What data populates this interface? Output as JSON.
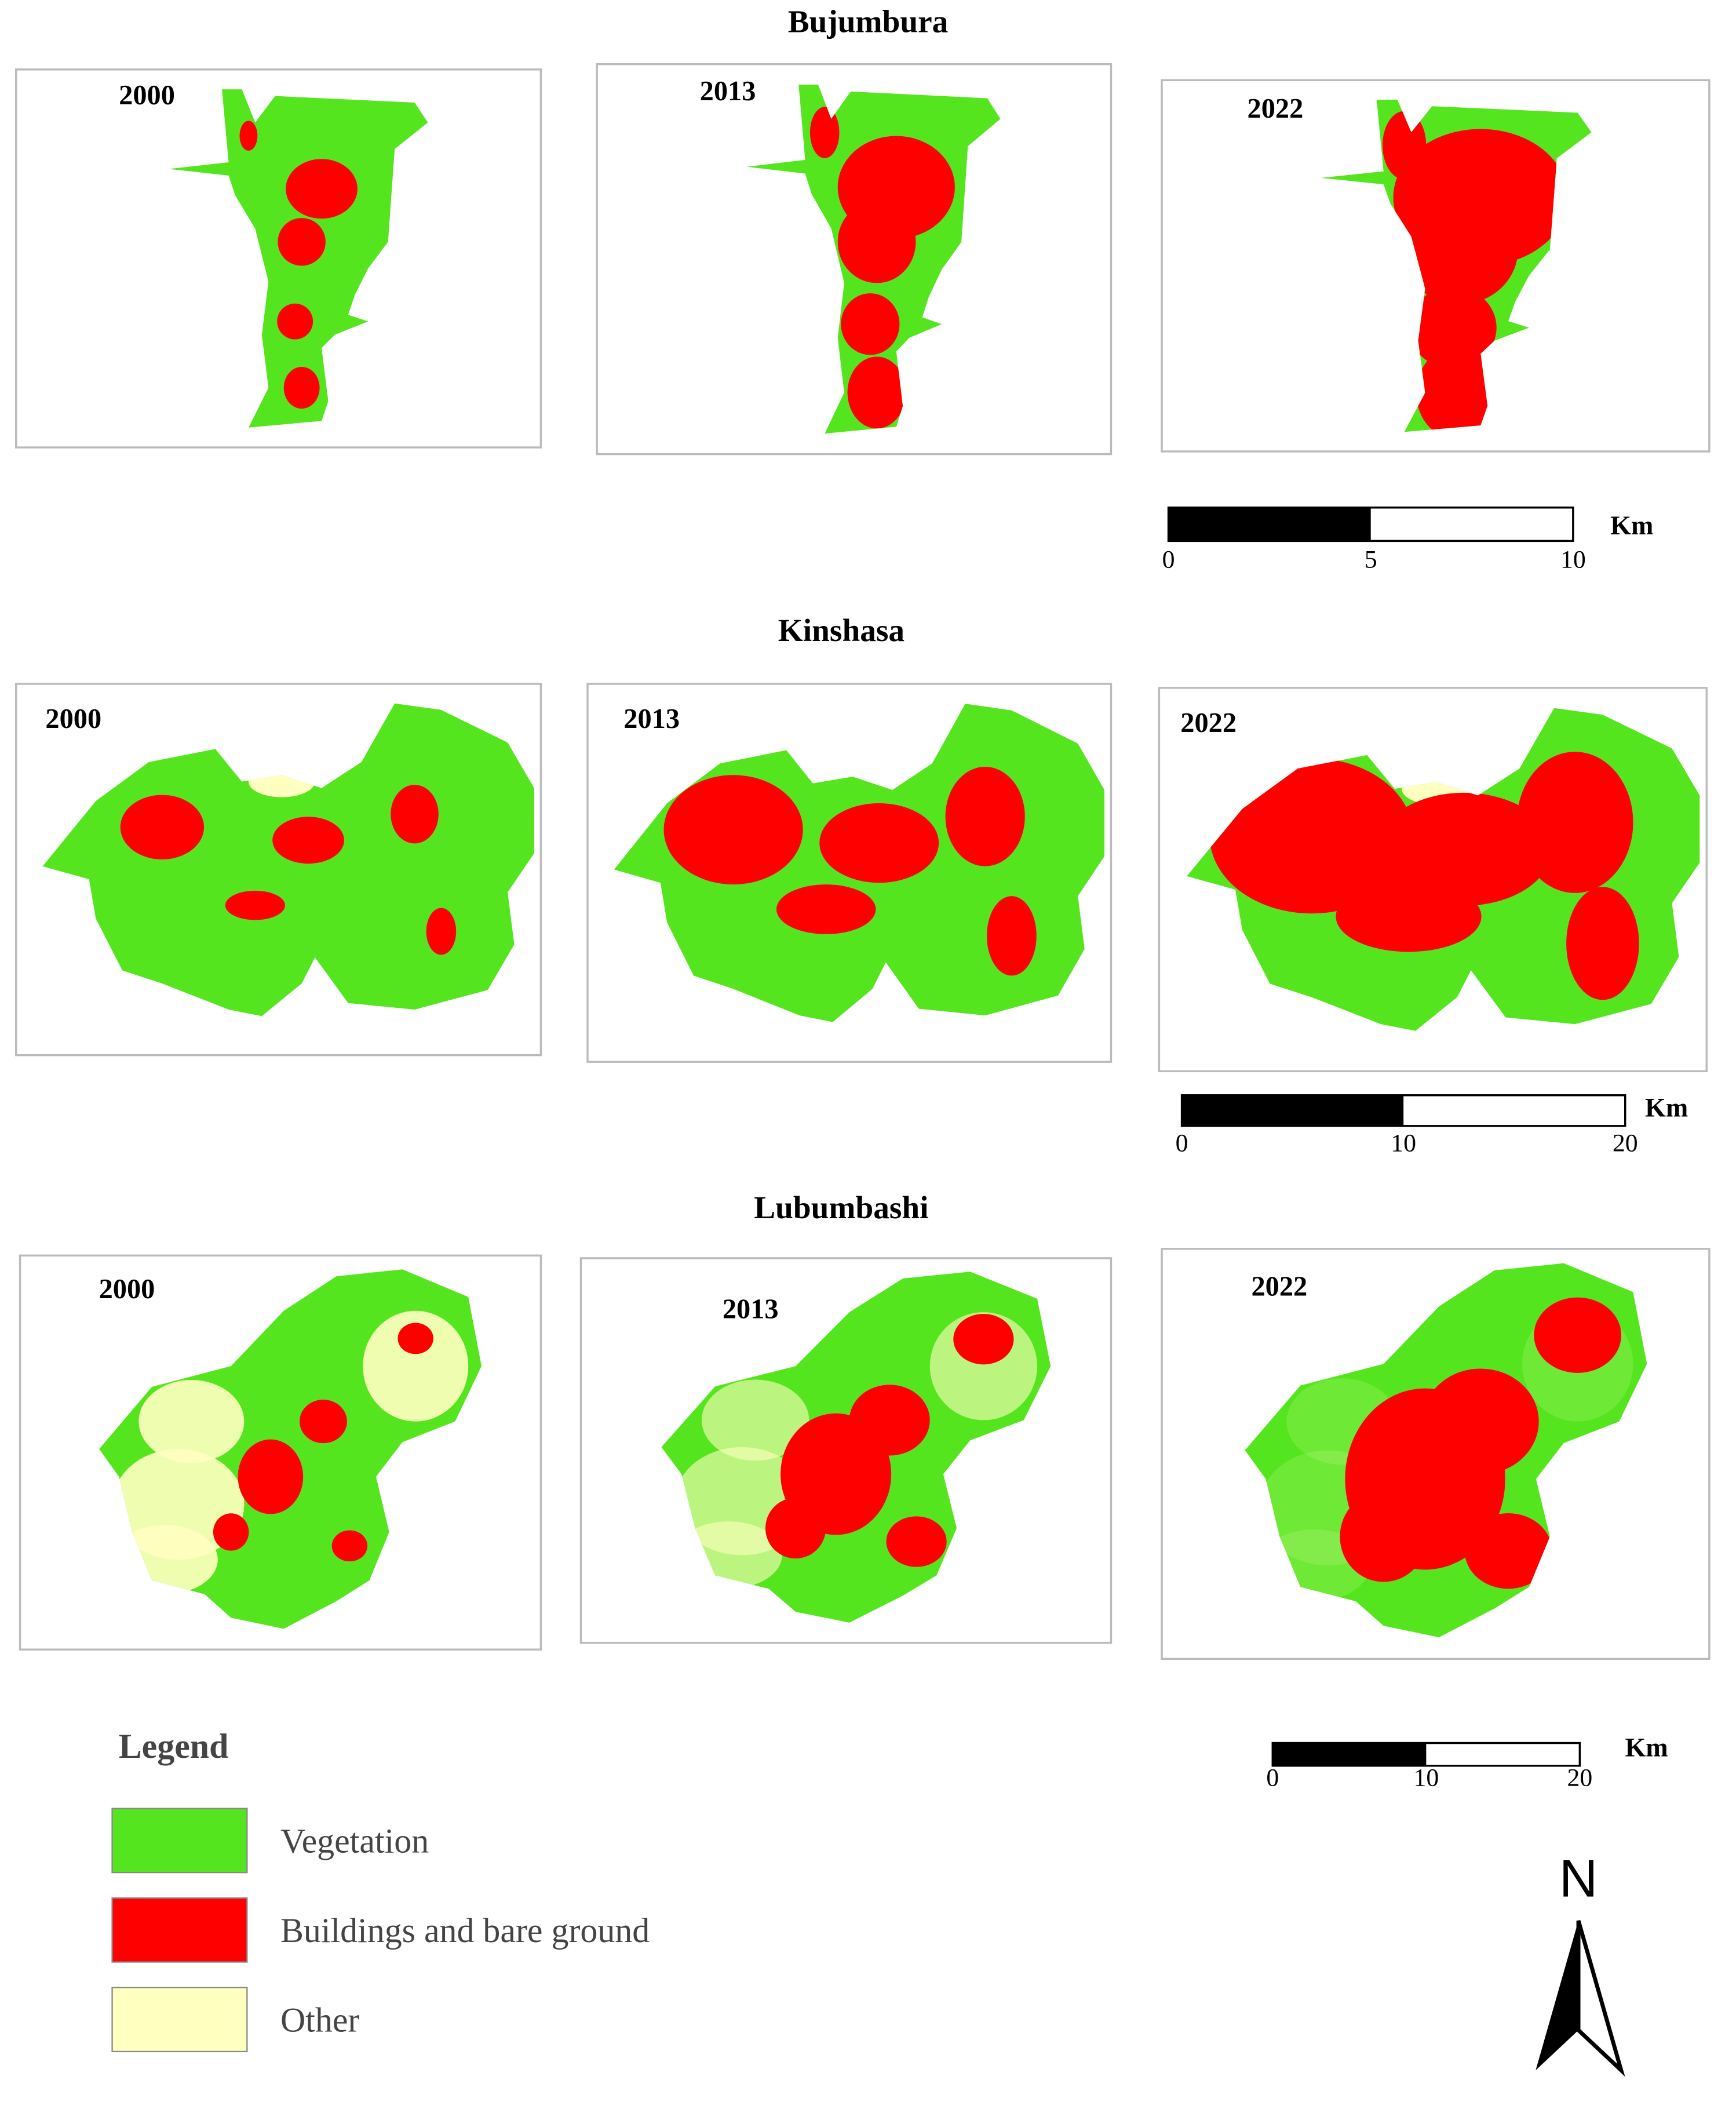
{
  "panels": [
    {
      "city": "Bujumbura",
      "maps": [
        {
          "year": "2000"
        },
        {
          "year": "2013"
        },
        {
          "year": "2022"
        }
      ],
      "scale_bar": {
        "ticks": [
          0,
          5,
          10
        ],
        "unit": "Km"
      }
    },
    {
      "city": "Kinshasa",
      "maps": [
        {
          "year": "2000"
        },
        {
          "year": "2013"
        },
        {
          "year": "2022"
        }
      ],
      "scale_bar": {
        "ticks": [
          0,
          10,
          20
        ],
        "unit": "Km"
      }
    },
    {
      "city": "Lubumbashi",
      "maps": [
        {
          "year": "2000"
        },
        {
          "year": "2013"
        },
        {
          "year": "2022"
        }
      ],
      "scale_bar": {
        "ticks": [
          0,
          10,
          20
        ],
        "unit": "Km"
      }
    }
  ],
  "legend": {
    "title": "Legend",
    "items": [
      {
        "label": "Vegetation",
        "color": "#55e51e"
      },
      {
        "label": "Buildings and bare ground",
        "color": "#ff0000"
      },
      {
        "label": "Other",
        "color": "#ffffc0"
      }
    ]
  },
  "north_arrow": {
    "label": "N"
  }
}
